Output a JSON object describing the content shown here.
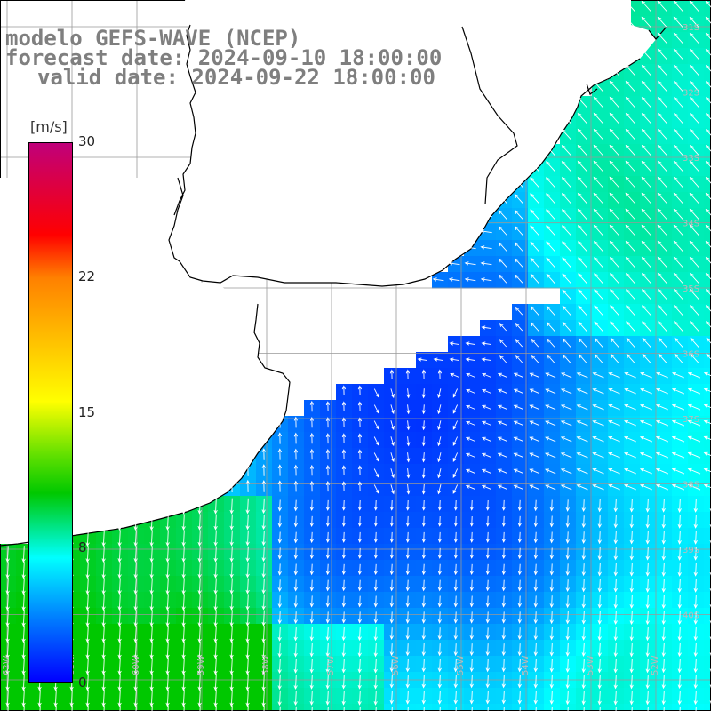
{
  "title": {
    "line1": "modelo GEFS-WAVE (NCEP)",
    "line2": "forecast date: 2024-09-10 18:00:00",
    "line3": "valid date: 2024-09-22 18:00:00"
  },
  "colorbar": {
    "unit": "[m/s]",
    "min": 0,
    "max": 30,
    "ticks": [
      "30",
      "22",
      "15",
      "8",
      "0"
    ],
    "colors": [
      "#0000ff",
      "#0080ff",
      "#00ffff",
      "#00c800",
      "#60e000",
      "#ffff00",
      "#ff8000",
      "#ff0000",
      "#c0007a"
    ]
  },
  "map": {
    "variable": "wind speed and direction",
    "land_color": "#ffffff",
    "coast_color": "#000000",
    "grid_color": "#999999",
    "arrow_color": "#ffffff",
    "lat_labels": [
      "31S",
      "32S",
      "33S",
      "34S",
      "35S",
      "36S",
      "37S",
      "38S",
      "39S",
      "40S"
    ],
    "lon_labels": [
      "62W",
      "61W",
      "60W",
      "59W",
      "58W",
      "57W",
      "56W",
      "55W",
      "54W",
      "53W",
      "52W"
    ]
  }
}
